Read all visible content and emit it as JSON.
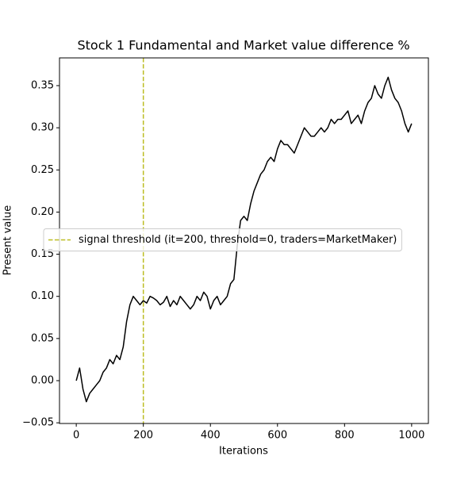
{
  "chart_data": {
    "type": "line",
    "title": "Stock 1 Fundamental and Market value difference %",
    "x_label": "Iterations",
    "y_label": "Present value",
    "x": [
      0,
      10,
      20,
      30,
      40,
      50,
      60,
      70,
      80,
      90,
      100,
      110,
      120,
      130,
      140,
      150,
      160,
      170,
      180,
      190,
      200,
      210,
      220,
      230,
      240,
      250,
      260,
      270,
      280,
      290,
      300,
      310,
      320,
      330,
      340,
      350,
      360,
      370,
      380,
      390,
      400,
      410,
      420,
      430,
      440,
      450,
      460,
      470,
      480,
      490,
      500,
      510,
      520,
      530,
      540,
      550,
      560,
      570,
      580,
      590,
      600,
      610,
      620,
      630,
      640,
      650,
      660,
      670,
      680,
      690,
      700,
      710,
      720,
      730,
      740,
      750,
      760,
      770,
      780,
      790,
      800,
      810,
      820,
      830,
      840,
      850,
      860,
      870,
      880,
      890,
      900,
      910,
      920,
      930,
      940,
      950,
      960,
      970,
      980,
      990,
      1000
    ],
    "series": [
      {
        "color": "#000000",
        "values": [
          0.0,
          0.015,
          -0.01,
          -0.025,
          -0.015,
          -0.01,
          -0.005,
          0.0,
          0.01,
          0.015,
          0.025,
          0.02,
          0.03,
          0.025,
          0.04,
          0.07,
          0.09,
          0.1,
          0.095,
          0.09,
          0.095,
          0.092,
          0.1,
          0.098,
          0.095,
          0.09,
          0.093,
          0.1,
          0.088,
          0.095,
          0.09,
          0.1,
          0.095,
          0.09,
          0.085,
          0.09,
          0.1,
          0.095,
          0.105,
          0.1,
          0.085,
          0.095,
          0.1,
          0.09,
          0.095,
          0.1,
          0.115,
          0.12,
          0.16,
          0.19,
          0.195,
          0.19,
          0.21,
          0.225,
          0.235,
          0.245,
          0.25,
          0.26,
          0.265,
          0.26,
          0.275,
          0.285,
          0.28,
          0.28,
          0.275,
          0.27,
          0.28,
          0.29,
          0.3,
          0.295,
          0.29,
          0.29,
          0.295,
          0.3,
          0.295,
          0.3,
          0.31,
          0.305,
          0.31,
          0.31,
          0.315,
          0.32,
          0.305,
          0.31,
          0.315,
          0.305,
          0.32,
          0.33,
          0.335,
          0.35,
          0.34,
          0.335,
          0.35,
          0.36,
          0.345,
          0.335,
          0.33,
          0.32,
          0.305,
          0.295,
          0.305
        ]
      }
    ],
    "vlines": [
      {
        "x": 200,
        "color": "#bcbd22",
        "label": "signal threshold (it=200, threshold=0, traders=MarketMaker)"
      }
    ],
    "xlim": [
      -50,
      1050
    ],
    "ylim": [
      -0.0508,
      0.3829
    ],
    "xticks": [
      0,
      200,
      400,
      600,
      800,
      1000
    ],
    "yticks": [
      {
        "value": -0.05,
        "label": "−0.05"
      },
      {
        "value": 0,
        "label": "0.00"
      },
      {
        "value": 0.05,
        "label": "0.05"
      },
      {
        "value": 0.1,
        "label": "0.10"
      },
      {
        "value": 0.15,
        "label": "0.15"
      },
      {
        "value": 0.2,
        "label": "0.20"
      },
      {
        "value": 0.25,
        "label": "0.25"
      },
      {
        "value": 0.3,
        "label": "0.30"
      },
      {
        "value": 0.35,
        "label": "0.35"
      }
    ],
    "legend": "center left"
  }
}
